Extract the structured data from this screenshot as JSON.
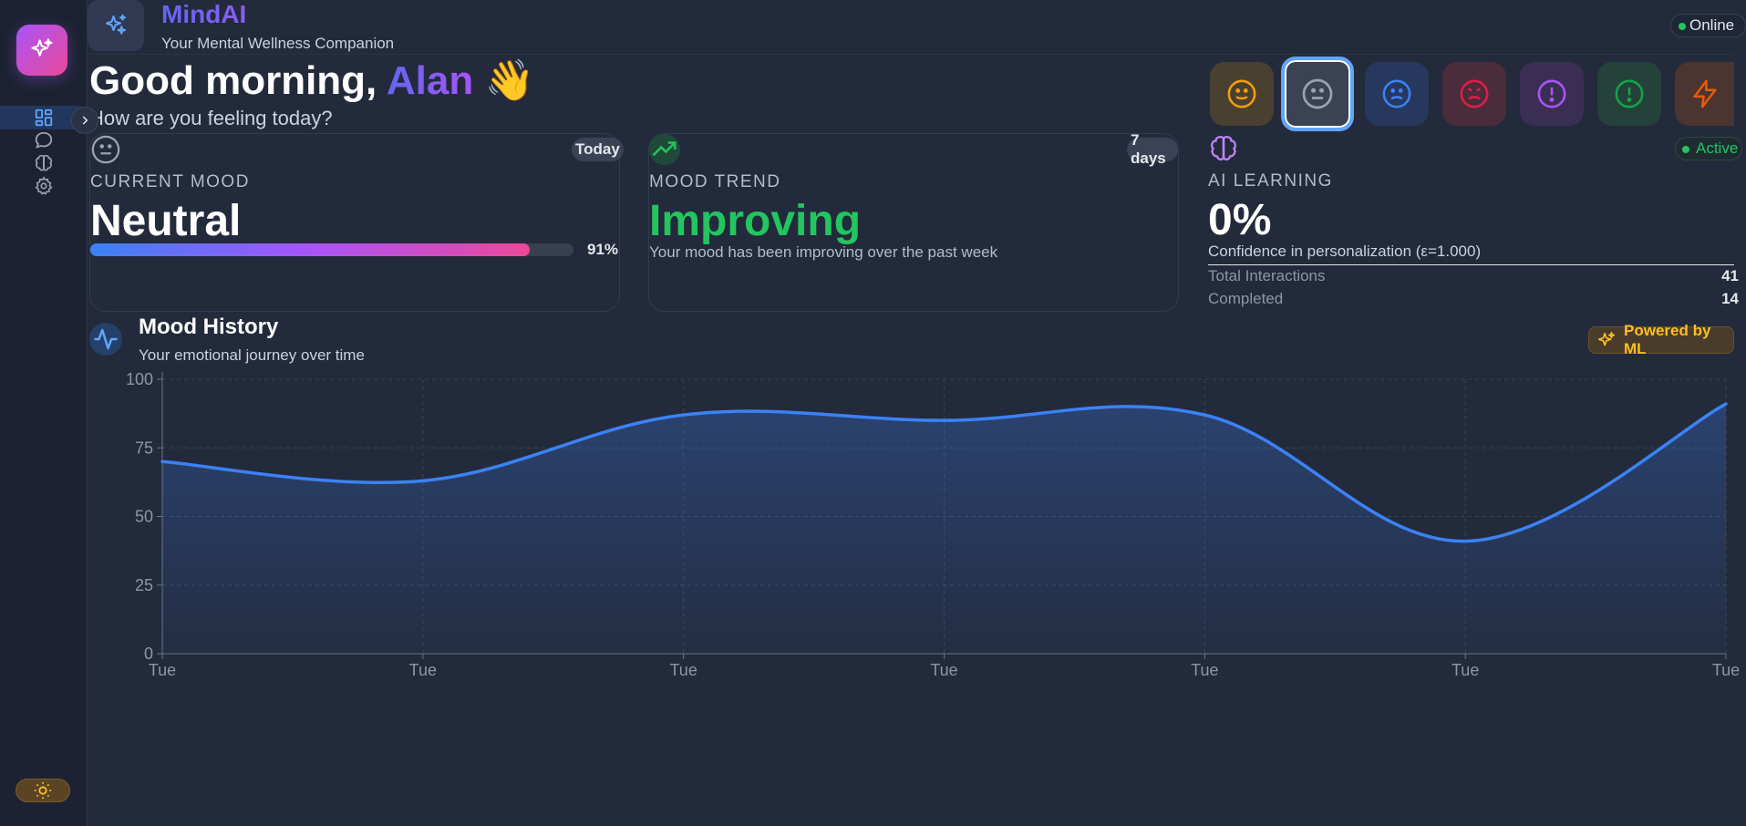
{
  "app": {
    "name": "MindAI",
    "tagline": "Your Mental Wellness Companion",
    "status": "Online"
  },
  "greeting": {
    "prefix": "Good morning, ",
    "name": "Alan",
    "emoji": "👋",
    "question": "How are you feeling today?"
  },
  "mood_selector": [
    {
      "mood": "happy",
      "icon": "smile-icon",
      "color": "#f59e0b",
      "bg": "#4a4030",
      "selected": false
    },
    {
      "mood": "neutral",
      "icon": "neutral-face-icon",
      "color": "#9ca3af",
      "bg": "#3a4254",
      "selected": true
    },
    {
      "mood": "sad",
      "icon": "frown-icon",
      "color": "#3b82f6",
      "bg": "#27385e",
      "selected": false
    },
    {
      "mood": "angry",
      "icon": "angry-face-icon",
      "color": "#e11d48",
      "bg": "#4a2c3a",
      "selected": false
    },
    {
      "mood": "anxious",
      "icon": "alert-circle-purple-icon",
      "color": "#a855f7",
      "bg": "#3a2e55",
      "selected": false
    },
    {
      "mood": "alert",
      "icon": "alert-circle-green-icon",
      "color": "#16a34a",
      "bg": "#24423a",
      "selected": false
    },
    {
      "mood": "energetic",
      "icon": "lightning-icon",
      "color": "#ea580c",
      "bg": "#4a3530",
      "selected": false
    }
  ],
  "cards": {
    "current_mood": {
      "badge": "Today",
      "label": "CURRENT MOOD",
      "value": "Neutral",
      "progress_percent": 91,
      "progress_label": "91%"
    },
    "mood_trend": {
      "badge": "7 days",
      "label": "MOOD TREND",
      "value": "Improving",
      "value_color": "#22c55e",
      "description": "Your mood has been improving over the past week"
    },
    "ai_learning": {
      "badge": "Active",
      "label": "AI LEARNING",
      "value": "0%",
      "description": "Confidence in personalization (ε=1.000)",
      "stats": [
        {
          "label": "Total Interactions",
          "value": "41"
        },
        {
          "label": "Completed",
          "value": "14"
        }
      ]
    }
  },
  "chart_section": {
    "title": "Mood History",
    "subtitle": "Your emotional journey over time",
    "badge": "Powered by ML"
  },
  "chart_data": {
    "type": "area",
    "title": "Mood History",
    "x": [
      "Tue",
      "Tue",
      "Tue",
      "Tue",
      "Tue",
      "Tue",
      "Tue"
    ],
    "values": [
      70,
      63,
      87,
      85,
      87,
      41,
      91
    ],
    "ylim": [
      0,
      100
    ],
    "yticks": [
      0,
      25,
      50,
      75,
      100
    ],
    "grid": true,
    "line_color": "#3b82f6"
  },
  "sidebar": {
    "items": [
      "dashboard-icon",
      "chat-icon",
      "brain-icon",
      "settings-icon"
    ]
  }
}
